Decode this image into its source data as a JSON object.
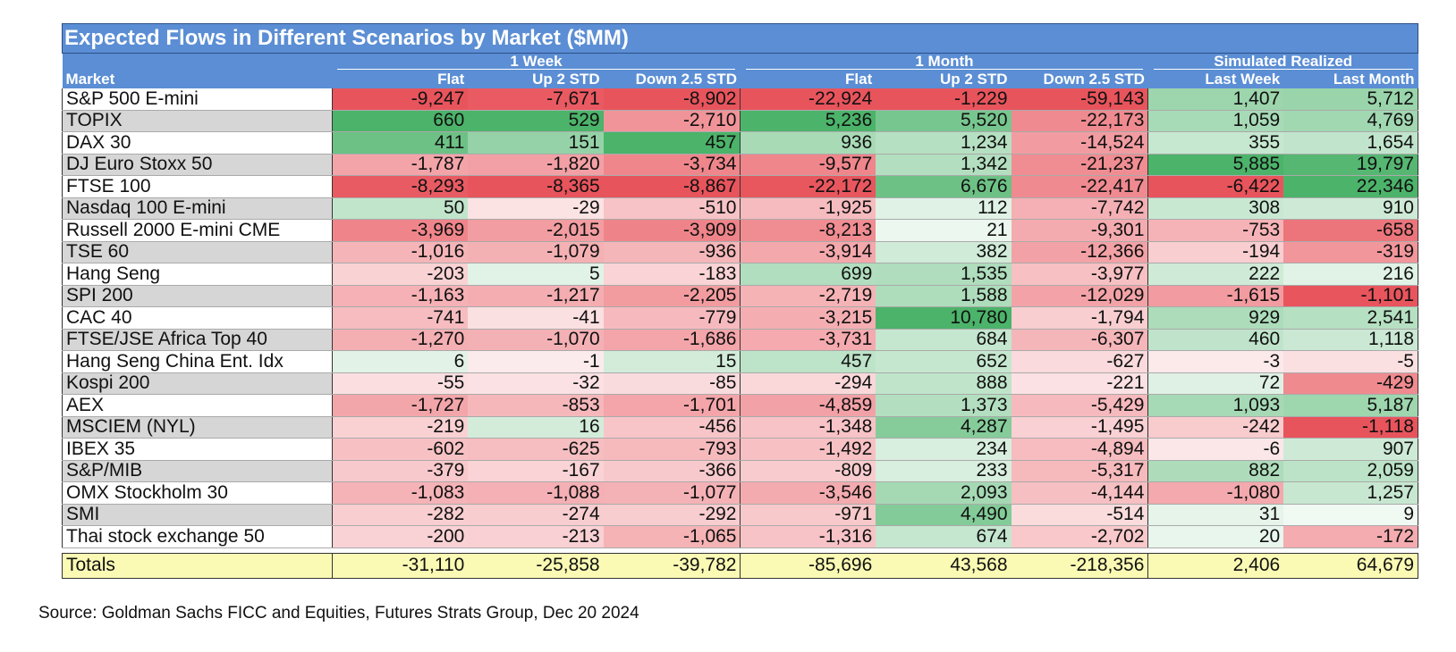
{
  "title": "Expected Flows in Different Scenarios by Market ($MM)",
  "group_headers": [
    "1 Week",
    "1 Month",
    "Simulated Realized"
  ],
  "column_headers": [
    "Market",
    "Flat",
    "Up 2 STD",
    "Down 2.5 STD",
    "Flat",
    "Up 2 STD",
    "Down 2.5 STD",
    "Last Week",
    "Last Month"
  ],
  "colors": {
    "header_blue": "#5b8ed4",
    "negative_red": "#e8545c",
    "positive_green": "#4cb36a",
    "totals_yellow": "#fafab4",
    "zebra_gray": "#d6d6d6"
  },
  "rows": [
    {
      "market": "S&P 500 E-mini",
      "values": [
        "-9,247",
        "-7,671",
        "-8,902",
        "-22,924",
        "-1,229",
        "-59,143",
        "1,407",
        "5,712"
      ]
    },
    {
      "market": "TOPIX",
      "values": [
        "660",
        "529",
        "-2,710",
        "5,236",
        "5,520",
        "-22,173",
        "1,059",
        "4,769"
      ]
    },
    {
      "market": "DAX 30",
      "values": [
        "411",
        "151",
        "457",
        "936",
        "1,234",
        "-14,524",
        "355",
        "1,654"
      ]
    },
    {
      "market": "DJ Euro Stoxx 50",
      "values": [
        "-1,787",
        "-1,820",
        "-3,734",
        "-9,577",
        "1,342",
        "-21,237",
        "5,885",
        "19,797"
      ]
    },
    {
      "market": "FTSE 100",
      "values": [
        "-8,293",
        "-8,365",
        "-8,867",
        "-22,172",
        "6,676",
        "-22,417",
        "-6,422",
        "22,346"
      ]
    },
    {
      "market": "Nasdaq 100 E-mini",
      "values": [
        "50",
        "-29",
        "-510",
        "-1,925",
        "112",
        "-7,742",
        "308",
        "910"
      ]
    },
    {
      "market": "Russell 2000 E-mini CME",
      "values": [
        "-3,969",
        "-2,015",
        "-3,909",
        "-8,213",
        "21",
        "-9,301",
        "-753",
        "-658"
      ]
    },
    {
      "market": "TSE 60",
      "values": [
        "-1,016",
        "-1,079",
        "-936",
        "-3,914",
        "382",
        "-12,366",
        "-194",
        "-319"
      ]
    },
    {
      "market": "Hang Seng",
      "values": [
        "-203",
        "5",
        "-183",
        "699",
        "1,535",
        "-3,977",
        "222",
        "216"
      ]
    },
    {
      "market": "SPI 200",
      "values": [
        "-1,163",
        "-1,217",
        "-2,205",
        "-2,719",
        "1,588",
        "-12,029",
        "-1,615",
        "-1,101"
      ]
    },
    {
      "market": "CAC 40",
      "values": [
        "-741",
        "-41",
        "-779",
        "-3,215",
        "10,780",
        "-1,794",
        "929",
        "2,541"
      ]
    },
    {
      "market": "FTSE/JSE Africa Top 40",
      "values": [
        "-1,270",
        "-1,070",
        "-1,686",
        "-3,731",
        "684",
        "-6,307",
        "460",
        "1,118"
      ]
    },
    {
      "market": "Hang Seng China Ent. Idx",
      "values": [
        "6",
        "-1",
        "15",
        "457",
        "652",
        "-627",
        "-3",
        "-5"
      ]
    },
    {
      "market": "Kospi 200",
      "values": [
        "-55",
        "-32",
        "-85",
        "-294",
        "888",
        "-221",
        "72",
        "-429"
      ]
    },
    {
      "market": "AEX",
      "values": [
        "-1,727",
        "-853",
        "-1,701",
        "-4,859",
        "1,373",
        "-5,429",
        "1,093",
        "5,187"
      ]
    },
    {
      "market": "MSCIEM (NYL)",
      "values": [
        "-219",
        "16",
        "-456",
        "-1,348",
        "4,287",
        "-1,495",
        "-242",
        "-1,118"
      ]
    },
    {
      "market": "IBEX 35",
      "values": [
        "-602",
        "-625",
        "-793",
        "-1,492",
        "234",
        "-4,894",
        "-6",
        "907"
      ]
    },
    {
      "market": "S&P/MIB",
      "values": [
        "-379",
        "-167",
        "-366",
        "-809",
        "233",
        "-5,317",
        "882",
        "2,059"
      ]
    },
    {
      "market": "OMX Stockholm 30",
      "values": [
        "-1,083",
        "-1,088",
        "-1,077",
        "-3,546",
        "2,093",
        "-4,144",
        "-1,080",
        "1,257"
      ]
    },
    {
      "market": "SMI",
      "values": [
        "-282",
        "-274",
        "-292",
        "-971",
        "4,490",
        "-514",
        "31",
        "9"
      ]
    },
    {
      "market": "Thai stock exchange 50",
      "values": [
        "-200",
        "-213",
        "-1,065",
        "-1,316",
        "674",
        "-2,702",
        "20",
        "-172"
      ]
    }
  ],
  "totals": {
    "label": "Totals",
    "values": [
      "-31,110",
      "-25,858",
      "-39,782",
      "-85,696",
      "43,568",
      "-218,356",
      "2,406",
      "64,679"
    ]
  },
  "source": "Source: Goldman Sachs FICC and Equities, Futures Strats Group, Dec 20 2024"
}
